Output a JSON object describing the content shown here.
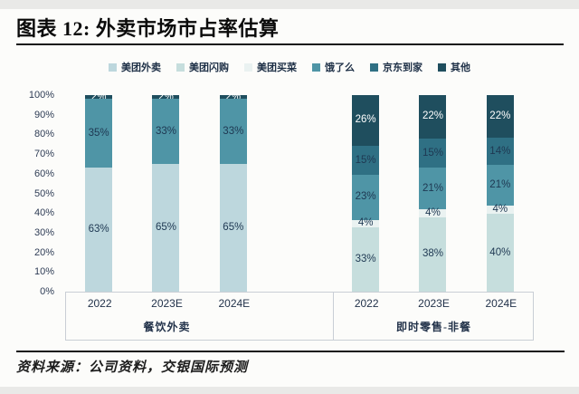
{
  "title": "图表 12: 外卖市场市占率估算",
  "source": "资料来源：公司资料，交银国际预测",
  "legend": [
    {
      "label": "美团外卖",
      "color": "#bdd7dd"
    },
    {
      "label": "美团闪购",
      "color": "#c6dedd"
    },
    {
      "label": "美团买菜",
      "color": "#eaf2f1"
    },
    {
      "label": "饿了么",
      "color": "#4f95a6"
    },
    {
      "label": "京东到家",
      "color": "#2f7084"
    },
    {
      "label": "其他",
      "color": "#1f4e5e"
    }
  ],
  "chart_data": {
    "type": "bar",
    "stacked": true,
    "unit": "%",
    "y_axis": {
      "min": 0,
      "max": 100,
      "step": 10,
      "tick_labels": [
        "100%",
        "90%",
        "80%",
        "70%",
        "60%",
        "50%",
        "40%",
        "30%",
        "20%",
        "10%",
        "0%"
      ]
    },
    "grid": false,
    "legend_position": "top",
    "label_text_dark": "#1e3852",
    "label_text_light": "#ffffff",
    "white_text_series": [
      "其他"
    ],
    "groups": [
      {
        "label": "餐饮外卖",
        "categories": [
          "2022",
          "2023E",
          "2024E"
        ],
        "series": [
          {
            "name": "美团外卖",
            "values": [
              63,
              65,
              65
            ]
          },
          {
            "name": "饿了么",
            "values": [
              35,
              33,
              33
            ]
          },
          {
            "name": "其他",
            "values": [
              2,
              2,
              2
            ]
          }
        ]
      },
      {
        "label": "即时零售-非餐",
        "categories": [
          "2022",
          "2023E",
          "2024E"
        ],
        "series": [
          {
            "name": "美团闪购",
            "values": [
              33,
              38,
              40
            ]
          },
          {
            "name": "美团买菜",
            "values": [
              4,
              4,
              4
            ]
          },
          {
            "name": "饿了么",
            "values": [
              23,
              21,
              21
            ]
          },
          {
            "name": "京东到家",
            "values": [
              15,
              15,
              14
            ]
          },
          {
            "name": "其他",
            "values": [
              26,
              22,
              22
            ]
          }
        ]
      }
    ]
  }
}
